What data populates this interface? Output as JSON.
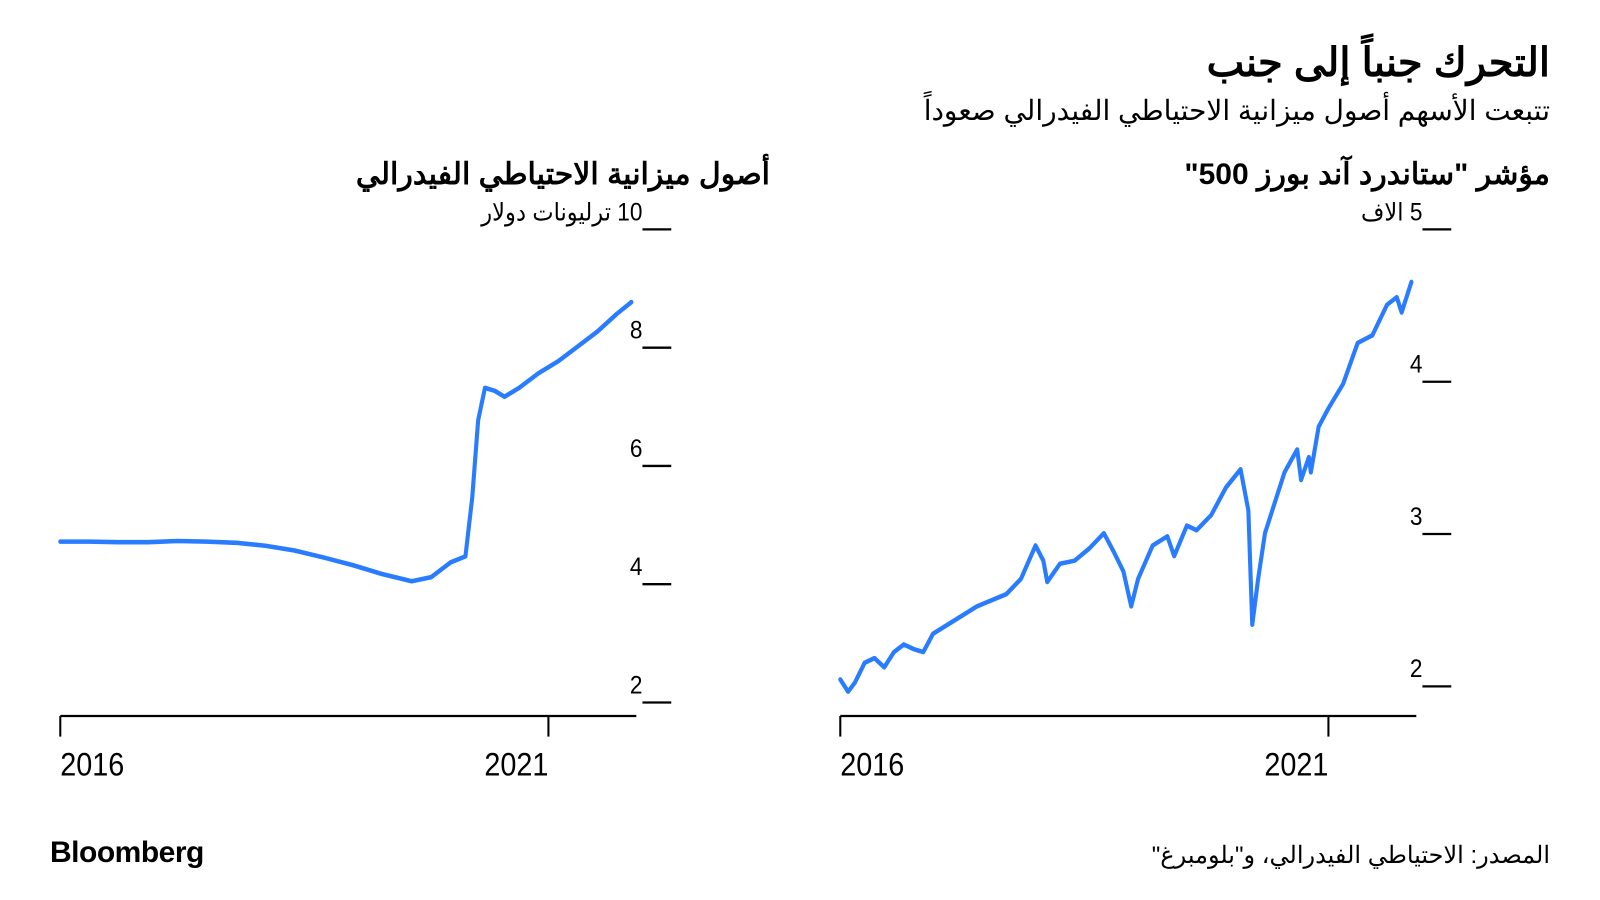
{
  "header": {
    "title": "التحرك جنباً إلى جنب",
    "subtitle": "تتبعت الأسهم أصول ميزانية الاحتياطي الفيدرالي صعوداً"
  },
  "footer": {
    "brand": "Bloomberg",
    "source": "المصدر: الاحتياطي الفيدرالي، و\"بلومبرغ\""
  },
  "chart_left": {
    "title": "أصول ميزانية الاحتياطي الفيدرالي",
    "type": "line",
    "line_color": "#2a7cff",
    "line_width": 4,
    "background_color": "#ffffff",
    "axis_color": "#000000",
    "tick_length": 18,
    "xlim": [
      2016,
      2021.9
    ],
    "ylim": [
      1.5,
      10
    ],
    "x_ticks": [
      {
        "pos": 2016,
        "label": "2016"
      },
      {
        "pos": 2021,
        "label": "2021"
      }
    ],
    "y_ticks": [
      {
        "pos": 10,
        "label": "10 ترليونات دولار"
      },
      {
        "pos": 8,
        "label": "8"
      },
      {
        "pos": 6,
        "label": "6"
      },
      {
        "pos": 4,
        "label": "4"
      },
      {
        "pos": 2,
        "label": "2"
      }
    ],
    "y_label_fontsize": 22,
    "x_label_fontsize": 28,
    "series": [
      {
        "x": 2016.0,
        "y": 4.45
      },
      {
        "x": 2016.3,
        "y": 4.45
      },
      {
        "x": 2016.6,
        "y": 4.44
      },
      {
        "x": 2016.9,
        "y": 4.44
      },
      {
        "x": 2017.2,
        "y": 4.46
      },
      {
        "x": 2017.5,
        "y": 4.45
      },
      {
        "x": 2017.8,
        "y": 4.43
      },
      {
        "x": 2018.1,
        "y": 4.38
      },
      {
        "x": 2018.4,
        "y": 4.3
      },
      {
        "x": 2018.7,
        "y": 4.18
      },
      {
        "x": 2019.0,
        "y": 4.05
      },
      {
        "x": 2019.3,
        "y": 3.9
      },
      {
        "x": 2019.6,
        "y": 3.78
      },
      {
        "x": 2019.8,
        "y": 3.85
      },
      {
        "x": 2020.0,
        "y": 4.1
      },
      {
        "x": 2020.15,
        "y": 4.2
      },
      {
        "x": 2020.22,
        "y": 5.2
      },
      {
        "x": 2020.28,
        "y": 6.5
      },
      {
        "x": 2020.35,
        "y": 7.05
      },
      {
        "x": 2020.45,
        "y": 7.0
      },
      {
        "x": 2020.55,
        "y": 6.9
      },
      {
        "x": 2020.7,
        "y": 7.05
      },
      {
        "x": 2020.9,
        "y": 7.3
      },
      {
        "x": 2021.1,
        "y": 7.5
      },
      {
        "x": 2021.3,
        "y": 7.75
      },
      {
        "x": 2021.5,
        "y": 8.0
      },
      {
        "x": 2021.7,
        "y": 8.3
      },
      {
        "x": 2021.85,
        "y": 8.5
      }
    ]
  },
  "chart_right": {
    "title": "مؤشر \"ستاندرد آند بورز 500\"",
    "type": "line",
    "line_color": "#2a7cff",
    "line_width": 4,
    "background_color": "#ffffff",
    "axis_color": "#000000",
    "tick_length": 18,
    "xlim": [
      2016,
      2021.9
    ],
    "ylim": [
      1.7,
      5
    ],
    "x_ticks": [
      {
        "pos": 2016,
        "label": "2016"
      },
      {
        "pos": 2021,
        "label": "2021"
      }
    ],
    "y_ticks": [
      {
        "pos": 5,
        "label": "5 آلاف"
      },
      {
        "pos": 4,
        "label": "4"
      },
      {
        "pos": 3,
        "label": "3"
      },
      {
        "pos": 2,
        "label": "2"
      }
    ],
    "y_label_fontsize": 22,
    "x_label_fontsize": 28,
    "series": [
      {
        "x": 2016.0,
        "y": 1.94
      },
      {
        "x": 2016.08,
        "y": 1.86
      },
      {
        "x": 2016.15,
        "y": 1.92
      },
      {
        "x": 2016.25,
        "y": 2.05
      },
      {
        "x": 2016.35,
        "y": 2.08
      },
      {
        "x": 2016.45,
        "y": 2.02
      },
      {
        "x": 2016.55,
        "y": 2.12
      },
      {
        "x": 2016.65,
        "y": 2.17
      },
      {
        "x": 2016.75,
        "y": 2.14
      },
      {
        "x": 2016.85,
        "y": 2.12
      },
      {
        "x": 2016.95,
        "y": 2.24
      },
      {
        "x": 2017.1,
        "y": 2.3
      },
      {
        "x": 2017.25,
        "y": 2.36
      },
      {
        "x": 2017.4,
        "y": 2.42
      },
      {
        "x": 2017.55,
        "y": 2.46
      },
      {
        "x": 2017.7,
        "y": 2.5
      },
      {
        "x": 2017.85,
        "y": 2.6
      },
      {
        "x": 2018.0,
        "y": 2.82
      },
      {
        "x": 2018.08,
        "y": 2.72
      },
      {
        "x": 2018.12,
        "y": 2.58
      },
      {
        "x": 2018.25,
        "y": 2.7
      },
      {
        "x": 2018.4,
        "y": 2.72
      },
      {
        "x": 2018.55,
        "y": 2.8
      },
      {
        "x": 2018.7,
        "y": 2.9
      },
      {
        "x": 2018.8,
        "y": 2.78
      },
      {
        "x": 2018.9,
        "y": 2.65
      },
      {
        "x": 2018.98,
        "y": 2.42
      },
      {
        "x": 2019.05,
        "y": 2.6
      },
      {
        "x": 2019.2,
        "y": 2.82
      },
      {
        "x": 2019.35,
        "y": 2.88
      },
      {
        "x": 2019.42,
        "y": 2.75
      },
      {
        "x": 2019.55,
        "y": 2.95
      },
      {
        "x": 2019.65,
        "y": 2.92
      },
      {
        "x": 2019.8,
        "y": 3.02
      },
      {
        "x": 2019.95,
        "y": 3.2
      },
      {
        "x": 2020.1,
        "y": 3.32
      },
      {
        "x": 2020.18,
        "y": 3.05
      },
      {
        "x": 2020.22,
        "y": 2.3
      },
      {
        "x": 2020.28,
        "y": 2.6
      },
      {
        "x": 2020.35,
        "y": 2.9
      },
      {
        "x": 2020.45,
        "y": 3.1
      },
      {
        "x": 2020.55,
        "y": 3.3
      },
      {
        "x": 2020.68,
        "y": 3.45
      },
      {
        "x": 2020.72,
        "y": 3.25
      },
      {
        "x": 2020.8,
        "y": 3.4
      },
      {
        "x": 2020.82,
        "y": 3.3
      },
      {
        "x": 2020.9,
        "y": 3.6
      },
      {
        "x": 2021.0,
        "y": 3.72
      },
      {
        "x": 2021.15,
        "y": 3.88
      },
      {
        "x": 2021.3,
        "y": 4.15
      },
      {
        "x": 2021.45,
        "y": 4.2
      },
      {
        "x": 2021.6,
        "y": 4.4
      },
      {
        "x": 2021.7,
        "y": 4.45
      },
      {
        "x": 2021.75,
        "y": 4.35
      },
      {
        "x": 2021.85,
        "y": 4.55
      }
    ]
  }
}
